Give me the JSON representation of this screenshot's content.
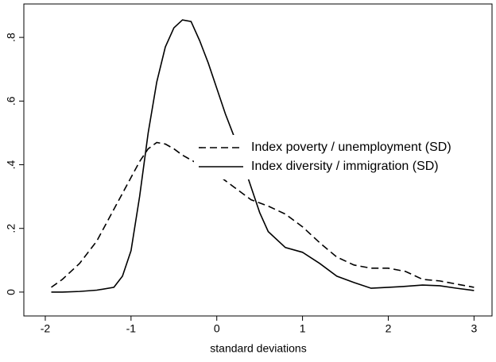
{
  "chart_data": {
    "type": "line",
    "xlabel": "standard deviations",
    "x": [
      -1.93,
      -1.8,
      -1.6,
      -1.4,
      -1.2,
      -1.1,
      -1.0,
      -0.9,
      -0.8,
      -0.7,
      -0.6,
      -0.5,
      -0.4,
      -0.3,
      -0.2,
      -0.1,
      0,
      0.1,
      0.2,
      0.3,
      0.4,
      0.5,
      0.6,
      0.8,
      1.0,
      1.2,
      1.4,
      1.6,
      1.8,
      2.0,
      2.2,
      2.4,
      2.6,
      2.8,
      3.0
    ],
    "series": [
      {
        "name": "Index poverty / unemployment (SD)",
        "color": "#000000",
        "dash": "dashed",
        "values": [
          0.015,
          0.04,
          0.09,
          0.16,
          0.26,
          0.31,
          0.36,
          0.41,
          0.45,
          0.47,
          0.465,
          0.45,
          0.43,
          0.415,
          0.4,
          0.385,
          0.37,
          0.35,
          0.33,
          0.31,
          0.29,
          0.28,
          0.27,
          0.245,
          0.205,
          0.155,
          0.11,
          0.085,
          0.075,
          0.075,
          0.065,
          0.04,
          0.035,
          0.025,
          0.015
        ]
      },
      {
        "name": "Index diversity / immigration (SD)",
        "color": "#000000",
        "dash": "solid",
        "values": [
          0,
          0,
          0.002,
          0.006,
          0.015,
          0.05,
          0.13,
          0.3,
          0.5,
          0.66,
          0.77,
          0.83,
          0.855,
          0.85,
          0.79,
          0.72,
          0.64,
          0.56,
          0.49,
          0.41,
          0.33,
          0.25,
          0.19,
          0.14,
          0.125,
          0.09,
          0.05,
          0.03,
          0.012,
          0.015,
          0.018,
          0.022,
          0.02,
          0.012,
          0.005
        ]
      }
    ],
    "xlim": [
      -2.25,
      3.21
    ],
    "xticks": [
      -2,
      -1,
      0,
      1,
      2,
      3
    ],
    "ylim": [
      -0.075,
      0.905
    ],
    "yticks": [
      0,
      {
        "value": 0.2,
        "label": ".2"
      },
      {
        "value": 0.4,
        "label": ".4"
      },
      {
        "value": 0.6,
        "label": ".6"
      },
      {
        "value": 0.8,
        "label": ".8"
      }
    ],
    "grid": false
  }
}
